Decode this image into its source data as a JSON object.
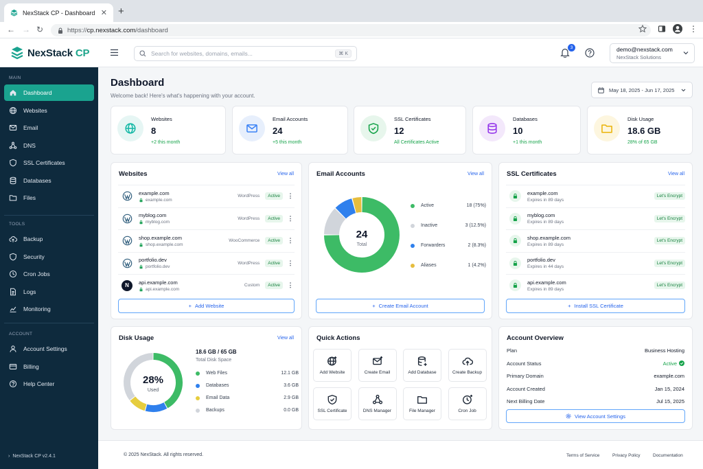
{
  "browser": {
    "tab_title": "NexStack CP - Dashboard",
    "url_scheme": "https://",
    "url_host": "cp.nexstack.com",
    "url_path": "/dashboard"
  },
  "header": {
    "logo_text": "NexStack",
    "logo_suffix": "CP",
    "search_placeholder": "Search for websites, domains, emails...",
    "search_shortcut": "⌘ K",
    "notifications_count": "3",
    "user_email": "demo@nexstack.com",
    "user_org": "NexStack Solutions"
  },
  "sidebar": {
    "main_label": "MAIN",
    "main_items": [
      {
        "label": "Dashboard",
        "icon": "home-icon"
      },
      {
        "label": "Websites",
        "icon": "globe-icon"
      },
      {
        "label": "Email",
        "icon": "mail-icon"
      },
      {
        "label": "DNS",
        "icon": "dns-icon"
      },
      {
        "label": "SSL Certificates",
        "icon": "shield-icon"
      },
      {
        "label": "Databases",
        "icon": "database-icon"
      },
      {
        "label": "Files",
        "icon": "folder-icon"
      }
    ],
    "tools_label": "TOOLS",
    "tools_items": [
      {
        "label": "Backup",
        "icon": "cloud-upload-icon"
      },
      {
        "label": "Security",
        "icon": "shield-icon"
      },
      {
        "label": "Cron Jobs",
        "icon": "clock-icon"
      },
      {
        "label": "Logs",
        "icon": "document-icon"
      },
      {
        "label": "Monitoring",
        "icon": "chart-line-icon"
      }
    ],
    "account_label": "ACCOUNT",
    "account_items": [
      {
        "label": "Account Settings",
        "icon": "user-icon"
      },
      {
        "label": "Billing",
        "icon": "card-icon"
      },
      {
        "label": "Help Center",
        "icon": "help-circle-icon"
      }
    ],
    "version": "NexStack CP v2.4.1"
  },
  "page": {
    "title": "Dashboard",
    "subtitle": "Welcome back! Here's what's happening with your account.",
    "date_range": "May 18, 2025 - Jun 17, 2025"
  },
  "stats": [
    {
      "label": "Websites",
      "value": "8",
      "sub": "+2 this month",
      "icon": "globe-icon",
      "color": "#14b8a6",
      "bg": "#e6f6f4"
    },
    {
      "label": "Email Accounts",
      "value": "24",
      "sub": "+5 this month",
      "icon": "mail-icon",
      "color": "#3b82f6",
      "bg": "#e7effc"
    },
    {
      "label": "SSL Certificates",
      "value": "12",
      "sub": "All Certificates Active",
      "icon": "shield-check-icon",
      "color": "#16a34a",
      "bg": "#e7f6ec"
    },
    {
      "label": "Databases",
      "value": "10",
      "sub": "+1 this month",
      "icon": "database-icon",
      "color": "#9333ea",
      "bg": "#f3e8fb"
    },
    {
      "label": "Disk Usage",
      "value": "18.6 GB",
      "sub": "28% of 65 GB",
      "icon": "folder-icon",
      "color": "#eab308",
      "bg": "#fdf6df"
    }
  ],
  "websites": {
    "title": "Websites",
    "view_all": "View all",
    "rows": [
      {
        "name": "example.com",
        "domain": "example.com",
        "type": "WordPress",
        "status": "Active",
        "icon": "wordpress-icon"
      },
      {
        "name": "myblog.com",
        "domain": "myblog.com",
        "type": "WordPress",
        "status": "Active",
        "icon": "wordpress-icon"
      },
      {
        "name": "shop.example.com",
        "domain": "shop.example.com",
        "type": "WooCommerce",
        "status": "Active",
        "icon": "wordpress-icon"
      },
      {
        "name": "portfolio.dev",
        "domain": "portfolio.dev",
        "type": "WordPress",
        "status": "Active",
        "icon": "wordpress-icon"
      },
      {
        "name": "api.example.com",
        "domain": "api.example.com",
        "type": "Custom",
        "status": "Active",
        "icon": "nextjs-icon"
      }
    ],
    "action": "Add Website"
  },
  "email": {
    "title": "Email Accounts",
    "view_all": "View all",
    "total": "24",
    "total_label": "Total",
    "segments": [
      {
        "name": "Active",
        "count": "18 (75%)",
        "value": 18,
        "color": "#3dbb66"
      },
      {
        "name": "Inactive",
        "count": "3 (12.5%)",
        "value": 3,
        "color": "#d1d5db"
      },
      {
        "name": "Forwarders",
        "count": "2 (8.3%)",
        "value": 2,
        "color": "#2f80ed"
      },
      {
        "name": "Aliases",
        "count": "1 (4.2%)",
        "value": 1,
        "color": "#e6bd3e"
      }
    ],
    "action": "Create Email Account"
  },
  "ssl": {
    "title": "SSL Certificates",
    "view_all": "View all",
    "rows": [
      {
        "name": "example.com",
        "expires": "Expires in 89 days",
        "issuer": "Let's Encrypt"
      },
      {
        "name": "myblog.com",
        "expires": "Expires in 89 days",
        "issuer": "Let's Encrypt"
      },
      {
        "name": "shop.example.com",
        "expires": "Expires in 89 days",
        "issuer": "Let's Encrypt"
      },
      {
        "name": "portfolio.dev",
        "expires": "Expires in 44 days",
        "issuer": "Let's Encrypt"
      },
      {
        "name": "api.example.com",
        "expires": "Expires in 89 days",
        "issuer": "Let's Encrypt"
      }
    ],
    "action": "Install SSL Certificate"
  },
  "disk": {
    "title": "Disk Usage",
    "view_all": "View all",
    "percent": "28%",
    "percent_label": "Used",
    "summary": "18.6 GB / 65 GB",
    "summary_label": "Total Disk Space",
    "segments": [
      {
        "name": "Web Files",
        "value": "12.1 GB",
        "gb": 12.1,
        "color": "#3dbb66"
      },
      {
        "name": "Databases",
        "value": "3.6 GB",
        "gb": 3.6,
        "color": "#2f80ed"
      },
      {
        "name": "Email Data",
        "value": "2.9 GB",
        "gb": 2.9,
        "color": "#e6cd3e"
      },
      {
        "name": "Backups",
        "value": "0.0 GB",
        "gb": 0.0,
        "color": "#d1d5db"
      }
    ]
  },
  "quick_actions": {
    "title": "Quick Actions",
    "items": [
      {
        "label": "Add Website",
        "icon": "globe-plus-icon"
      },
      {
        "label": "Create Email",
        "icon": "mail-plus-icon"
      },
      {
        "label": "Add Database",
        "icon": "database-plus-icon"
      },
      {
        "label": "Create Backup",
        "icon": "cloud-upload-icon"
      },
      {
        "label": "SSL Certificate",
        "icon": "shield-check-icon"
      },
      {
        "label": "DNS Manager",
        "icon": "dns-icon"
      },
      {
        "label": "File Manager",
        "icon": "folder-icon"
      },
      {
        "label": "Cron Job",
        "icon": "clock-plus-icon"
      }
    ]
  },
  "overview": {
    "title": "Account Overview",
    "rows": [
      {
        "label": "Plan",
        "value": "Business Hosting"
      },
      {
        "label": "Account Status",
        "value": "Active"
      },
      {
        "label": "Primary Domain",
        "value": "example.com"
      },
      {
        "label": "Account Created",
        "value": "Jan 15, 2024"
      },
      {
        "label": "Next Billing Date",
        "value": "Jul 15, 2025"
      }
    ],
    "action": "View Account Settings"
  },
  "footer": {
    "copyright": "© 2025 NexStack. All rights reserved.",
    "links": [
      "Terms of Service",
      "Privacy Policy",
      "Documentation"
    ]
  },
  "colors": {
    "sidebar_bg": "#0e2a3d",
    "accent": "#1aa38f",
    "link": "#2563eb",
    "success": "#16a34a"
  }
}
